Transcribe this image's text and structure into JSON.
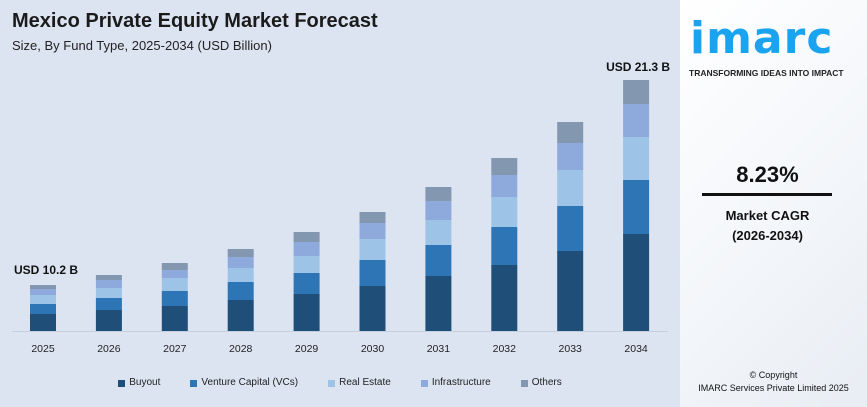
{
  "chart_data": {
    "type": "bar",
    "stacked": true,
    "title": "Mexico Private Equity Market Forecast",
    "subtitle": "Size, By Fund Type, 2025-2034 (USD Billion)",
    "categories": [
      "2025",
      "2026",
      "2027",
      "2028",
      "2029",
      "2030",
      "2031",
      "2032",
      "2033",
      "2034"
    ],
    "value_note_units": "relative (no y-axis printed)",
    "series": [
      {
        "name": "Buyout",
        "color": "#1f4e79",
        "values": [
          17,
          21,
          25,
          31,
          37,
          45,
          55,
          66,
          80,
          97
        ]
      },
      {
        "name": "Venture Capital (VCs)",
        "color": "#2e75b6",
        "values": [
          10,
          12,
          15,
          18,
          21,
          26,
          31,
          38,
          45,
          54
        ]
      },
      {
        "name": "Real Estate",
        "color": "#9dc3e6",
        "values": [
          9,
          10,
          13,
          14,
          17,
          21,
          25,
          30,
          36,
          43
        ]
      },
      {
        "name": "Infrastructure",
        "color": "#8ea9db",
        "values": [
          6,
          8,
          8,
          11,
          14,
          16,
          19,
          22,
          27,
          33
        ]
      },
      {
        "name": "Others",
        "color": "#8497b0",
        "values": [
          4,
          5,
          7,
          8,
          10,
          11,
          14,
          17,
          21,
          24
        ]
      }
    ],
    "annotations": [
      {
        "category": "2025",
        "text": "USD 10.2 B"
      },
      {
        "category": "2034",
        "text": "USD 21.3 B"
      }
    ],
    "grid": false,
    "legend": "bottom"
  },
  "side": {
    "logo": "imarc",
    "tagline": "TRANSFORMING IDEAS INTO IMPACT",
    "cagr_value": "8.23%",
    "cagr_label": "Market CAGR",
    "cagr_period": "(2026-2034)",
    "copyright": "© Copyright",
    "company": "IMARC Services Private Limited 2025"
  },
  "colors": {
    "background": "#dce4f2",
    "brand": "#1aa3ee"
  }
}
